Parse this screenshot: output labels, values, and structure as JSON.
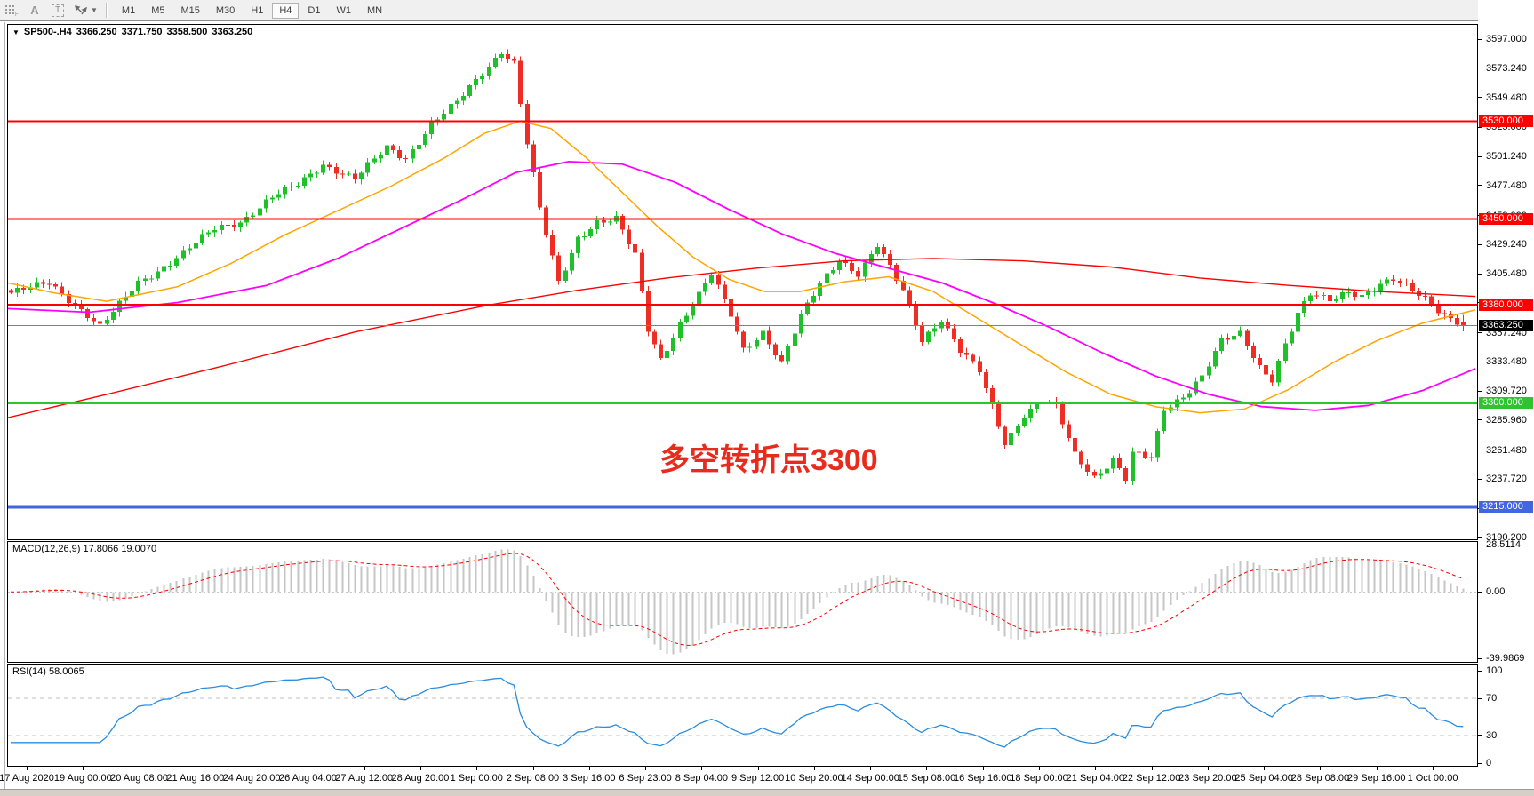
{
  "toolbar": {
    "icons": [
      {
        "name": "grid-dots-icon"
      },
      {
        "name": "text-a-icon",
        "glyph": "A"
      },
      {
        "name": "text-tool-icon",
        "glyph": "T"
      },
      {
        "name": "cursor-arrows-icon"
      }
    ],
    "timeframes": [
      "M1",
      "M5",
      "M15",
      "M30",
      "H1",
      "H4",
      "D1",
      "W1",
      "MN"
    ],
    "active_timeframe": "H4"
  },
  "title": {
    "symbol_period": "SP500-.H4",
    "open": "3366.250",
    "high": "3371.750",
    "low": "3358.500",
    "close": "3363.250"
  },
  "annotation": {
    "text": "多空转折点3300",
    "color": "#e92b1e"
  },
  "price_axis": {
    "top_price": 3597.0,
    "bottom_price": 3190.2,
    "top_y": 44,
    "bottom_y": 605,
    "ticks": [
      "3597.000",
      "3573.240",
      "3549.480",
      "3525.000",
      "3501.240",
      "3477.480",
      "3453.000",
      "3429.240",
      "3405.480",
      "3381.720",
      "3357.240",
      "3333.480",
      "3309.720",
      "3285.960",
      "3261.480",
      "3237.720",
      "3213.960",
      "3190.200"
    ]
  },
  "levels": [
    {
      "label": "3530.000",
      "price": 3530.0,
      "color": "#ff0000",
      "thickness": 2
    },
    {
      "label": "3450.000",
      "price": 3450.0,
      "color": "#ff0000",
      "thickness": 2
    },
    {
      "label": "3380.000",
      "price": 3380.0,
      "color": "#ff0000",
      "thickness": 3
    },
    {
      "label": "3300.000",
      "price": 3300.0,
      "color": "#2fc42f",
      "thickness": 3
    },
    {
      "label": "3215.000",
      "price": 3215.0,
      "color": "#4166e0",
      "thickness": 3
    }
  ],
  "current_price": {
    "label": "3363.250",
    "price": 3363.25,
    "line_color": "#808080",
    "box_color": "#000000"
  },
  "time_axis": {
    "labels": [
      "17 Aug 2020",
      "19 Aug 00:00",
      "20 Aug 08:00",
      "21 Aug 16:00",
      "24 Aug 20:00",
      "26 Aug 04:00",
      "27 Aug 12:00",
      "28 Aug 20:00",
      "1 Sep 00:00",
      "2 Sep 08:00",
      "3 Sep 16:00",
      "6 Sep 23:00",
      "8 Sep 04:00",
      "9 Sep 12:00",
      "10 Sep 20:00",
      "14 Sep 00:00",
      "15 Sep 08:00",
      "16 Sep 16:00",
      "18 Sep 00:00",
      "21 Sep 04:00",
      "22 Sep 12:00",
      "23 Sep 20:00",
      "25 Sep 04:00",
      "28 Sep 08:00",
      "29 Sep 16:00",
      "1 Oct 00:00"
    ]
  },
  "macd_pane": {
    "label": "MACD(12,26,9)",
    "values": [
      "17.8066",
      "19.0070"
    ],
    "ticks": [
      {
        "label": "28.5114",
        "value": 28.5114
      },
      {
        "label": "0.00",
        "value": 0
      },
      {
        "label": "-39.9869",
        "value": -39.9869
      }
    ],
    "bar_color": "#c6c6c6",
    "signal_color": "#ff0000"
  },
  "rsi_pane": {
    "label": "RSI(14)",
    "value": "58.0065",
    "ticks": [
      {
        "label": "100",
        "value": 100
      },
      {
        "label": "70",
        "value": 70
      },
      {
        "label": "30",
        "value": 30
      },
      {
        "label": "0",
        "value": 0
      }
    ],
    "line_color": "#2a8de0",
    "level_lines": [
      70,
      30
    ]
  },
  "colors": {
    "up_candle": "#1fc02a",
    "down_candle": "#ee2e24",
    "background": "#ffffff",
    "toolbar_bg": "#f0f0f0",
    "current_line": "#808080"
  },
  "chart_data": {
    "type": "candlestick",
    "symbol": "SP500-",
    "period": "H4",
    "title": "SP500-.H4 3366.250 3371.750 3358.500 3363.250",
    "x_range": [
      "17 Aug 2020",
      "1 Oct 2020"
    ],
    "y_range": [
      3190.2,
      3597.0
    ],
    "bar_count": 229,
    "last_bar_ohlc": {
      "open": 3366.25,
      "high": 3371.75,
      "low": 3358.5,
      "close": 3363.25
    },
    "close_path_anchors": [
      [
        0,
        3390
      ],
      [
        6,
        3398
      ],
      [
        12,
        3372
      ],
      [
        14,
        3362
      ],
      [
        20,
        3398
      ],
      [
        25,
        3415
      ],
      [
        32,
        3442
      ],
      [
        36,
        3448
      ],
      [
        41,
        3468
      ],
      [
        45,
        3478
      ],
      [
        49,
        3495
      ],
      [
        54,
        3483
      ],
      [
        59,
        3508
      ],
      [
        62,
        3500
      ],
      [
        66,
        3528
      ],
      [
        70,
        3545
      ],
      [
        75,
        3575
      ],
      [
        77,
        3588
      ],
      [
        79,
        3578
      ],
      [
        81,
        3512
      ],
      [
        83,
        3458
      ],
      [
        86,
        3398
      ],
      [
        89,
        3435
      ],
      [
        92,
        3448
      ],
      [
        95,
        3450
      ],
      [
        98,
        3420
      ],
      [
        100,
        3360
      ],
      [
        102,
        3336
      ],
      [
        105,
        3365
      ],
      [
        108,
        3388
      ],
      [
        110,
        3405
      ],
      [
        113,
        3372
      ],
      [
        115,
        3344
      ],
      [
        118,
        3358
      ],
      [
        121,
        3332
      ],
      [
        124,
        3370
      ],
      [
        127,
        3398
      ],
      [
        130,
        3418
      ],
      [
        133,
        3405
      ],
      [
        136,
        3428
      ],
      [
        140,
        3392
      ],
      [
        143,
        3352
      ],
      [
        146,
        3368
      ],
      [
        149,
        3342
      ],
      [
        152,
        3326
      ],
      [
        156,
        3268
      ],
      [
        159,
        3290
      ],
      [
        162,
        3302
      ],
      [
        164,
        3296
      ],
      [
        167,
        3258
      ],
      [
        170,
        3240
      ],
      [
        173,
        3254
      ],
      [
        175,
        3238
      ],
      [
        176,
        3258
      ],
      [
        179,
        3255
      ],
      [
        181,
        3295
      ],
      [
        184,
        3306
      ],
      [
        187,
        3322
      ],
      [
        190,
        3350
      ],
      [
        193,
        3356
      ],
      [
        196,
        3330
      ],
      [
        198,
        3320
      ],
      [
        200,
        3348
      ],
      [
        202,
        3372
      ],
      [
        204,
        3388
      ],
      [
        207,
        3384
      ],
      [
        210,
        3392
      ],
      [
        212,
        3388
      ],
      [
        215,
        3396
      ],
      [
        217,
        3400
      ],
      [
        220,
        3392
      ],
      [
        222,
        3386
      ],
      [
        225,
        3372
      ],
      [
        228,
        3363.25
      ]
    ],
    "moving_averages": [
      {
        "name": "slow-ma",
        "color": "#ff0000",
        "width": 1.4,
        "anchors": [
          [
            9,
            3288
          ],
          [
            120,
            3307
          ],
          [
            250,
            3330
          ],
          [
            400,
            3358
          ],
          [
            550,
            3380
          ],
          [
            650,
            3392
          ],
          [
            750,
            3402
          ],
          [
            850,
            3410
          ],
          [
            950,
            3416
          ],
          [
            1050,
            3418
          ],
          [
            1150,
            3416
          ],
          [
            1250,
            3411
          ],
          [
            1350,
            3402
          ],
          [
            1450,
            3396
          ],
          [
            1550,
            3391
          ],
          [
            1660,
            3387
          ]
        ]
      },
      {
        "name": "medium-ma",
        "color": "#ff00ff",
        "width": 1.8,
        "anchors": [
          [
            9,
            3377
          ],
          [
            100,
            3374
          ],
          [
            200,
            3382
          ],
          [
            300,
            3396
          ],
          [
            380,
            3418
          ],
          [
            450,
            3442
          ],
          [
            520,
            3466
          ],
          [
            580,
            3488
          ],
          [
            640,
            3497
          ],
          [
            700,
            3495
          ],
          [
            760,
            3480
          ],
          [
            820,
            3458
          ],
          [
            880,
            3438
          ],
          [
            940,
            3422
          ],
          [
            1000,
            3410
          ],
          [
            1060,
            3398
          ],
          [
            1120,
            3381
          ],
          [
            1180,
            3362
          ],
          [
            1240,
            3341
          ],
          [
            1300,
            3322
          ],
          [
            1360,
            3307
          ],
          [
            1420,
            3297
          ],
          [
            1480,
            3294
          ],
          [
            1540,
            3298
          ],
          [
            1600,
            3310
          ],
          [
            1660,
            3328
          ]
        ]
      },
      {
        "name": "fast-ma",
        "color": "#ffa500",
        "width": 1.5,
        "anchors": [
          [
            9,
            3398
          ],
          [
            60,
            3390
          ],
          [
            120,
            3383
          ],
          [
            200,
            3395
          ],
          [
            260,
            3414
          ],
          [
            320,
            3437
          ],
          [
            380,
            3457
          ],
          [
            440,
            3477
          ],
          [
            500,
            3500
          ],
          [
            545,
            3520
          ],
          [
            585,
            3530
          ],
          [
            620,
            3524
          ],
          [
            660,
            3500
          ],
          [
            700,
            3472
          ],
          [
            740,
            3444
          ],
          [
            780,
            3419
          ],
          [
            820,
            3401
          ],
          [
            860,
            3391
          ],
          [
            900,
            3391
          ],
          [
            950,
            3399
          ],
          [
            1000,
            3403
          ],
          [
            1050,
            3391
          ],
          [
            1100,
            3369
          ],
          [
            1150,
            3347
          ],
          [
            1200,
            3325
          ],
          [
            1250,
            3307
          ],
          [
            1300,
            3297
          ],
          [
            1350,
            3292
          ],
          [
            1400,
            3295
          ],
          [
            1450,
            3311
          ],
          [
            1500,
            3333
          ],
          [
            1550,
            3351
          ],
          [
            1600,
            3365
          ],
          [
            1660,
            3376
          ]
        ]
      }
    ],
    "horizontal_levels": [
      3530.0,
      3450.0,
      3380.0,
      3300.0,
      3215.0
    ],
    "indicators": [
      {
        "name": "MACD",
        "params": [
          12,
          26,
          9
        ],
        "last_values": [
          17.8066,
          19.007
        ],
        "y_range": [
          -39.9869,
          28.5114
        ]
      },
      {
        "name": "RSI",
        "params": [
          14
        ],
        "last_value": 58.0065,
        "y_range": [
          0,
          100
        ],
        "levels": [
          30,
          70
        ]
      }
    ]
  }
}
